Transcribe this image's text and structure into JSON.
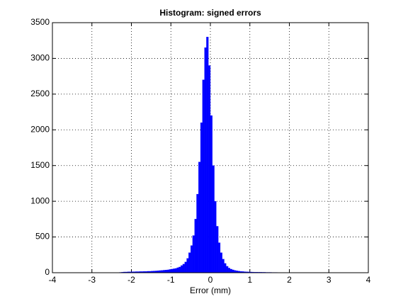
{
  "chart_data": {
    "type": "histogram",
    "title": "Histogram: signed errors",
    "x_label": "Error (mm)",
    "bins": [
      -2.3,
      -2.25,
      -2.2,
      -2.15,
      -2.1,
      -2.05,
      -2.0,
      -1.95,
      -1.9,
      -1.85,
      -1.8,
      -1.75,
      -1.7,
      -1.65,
      -1.6,
      -1.55,
      -1.5,
      -1.45,
      -1.4,
      -1.35,
      -1.3,
      -1.25,
      -1.2,
      -1.15,
      -1.1,
      -1.05,
      -1.0,
      -0.95,
      -0.9,
      -0.85,
      -0.8,
      -0.75,
      -0.7,
      -0.65,
      -0.6,
      -0.55,
      -0.5,
      -0.45,
      -0.4,
      -0.35,
      -0.3,
      -0.25,
      -0.2,
      -0.15,
      -0.1,
      -0.05,
      0.0,
      0.05,
      0.1,
      0.15,
      0.2,
      0.25,
      0.3,
      0.35,
      0.4,
      0.45,
      0.5,
      0.55,
      0.6,
      0.65,
      0.7,
      0.75,
      0.8,
      0.85,
      0.9,
      0.95,
      1.0,
      1.05,
      1.1,
      1.15,
      1.2,
      1.25,
      1.3,
      1.35,
      1.4,
      1.45,
      1.5,
      1.55,
      1.6,
      1.65,
      1.7,
      1.75,
      1.8,
      1.85,
      1.9,
      1.95,
      2.0
    ],
    "values": [
      5,
      8,
      10,
      10,
      12,
      12,
      14,
      14,
      15,
      15,
      16,
      16,
      18,
      18,
      20,
      20,
      22,
      24,
      25,
      28,
      30,
      32,
      35,
      38,
      40,
      45,
      50,
      55,
      60,
      70,
      80,
      100,
      120,
      150,
      200,
      280,
      380,
      520,
      750,
      1100,
      1550,
      2100,
      2700,
      3150,
      3300,
      2900,
      2200,
      1500,
      1000,
      650,
      420,
      280,
      190,
      130,
      90,
      65,
      50,
      40,
      32,
      26,
      22,
      18,
      16,
      14,
      12,
      11,
      10,
      9,
      8,
      8,
      7,
      7,
      6,
      6,
      5,
      5,
      5,
      4,
      4,
      4,
      3,
      3,
      3,
      3,
      2,
      2
    ],
    "color": "#0000ff",
    "xlim": [
      -4,
      4
    ],
    "xticks": [
      -4,
      -3,
      -2,
      -1,
      0,
      1,
      2,
      3,
      4
    ],
    "ylim": [
      0,
      3500
    ],
    "yticks": [
      0,
      500,
      1000,
      1500,
      2000,
      2500,
      3000,
      3500
    ],
    "grid": true
  }
}
